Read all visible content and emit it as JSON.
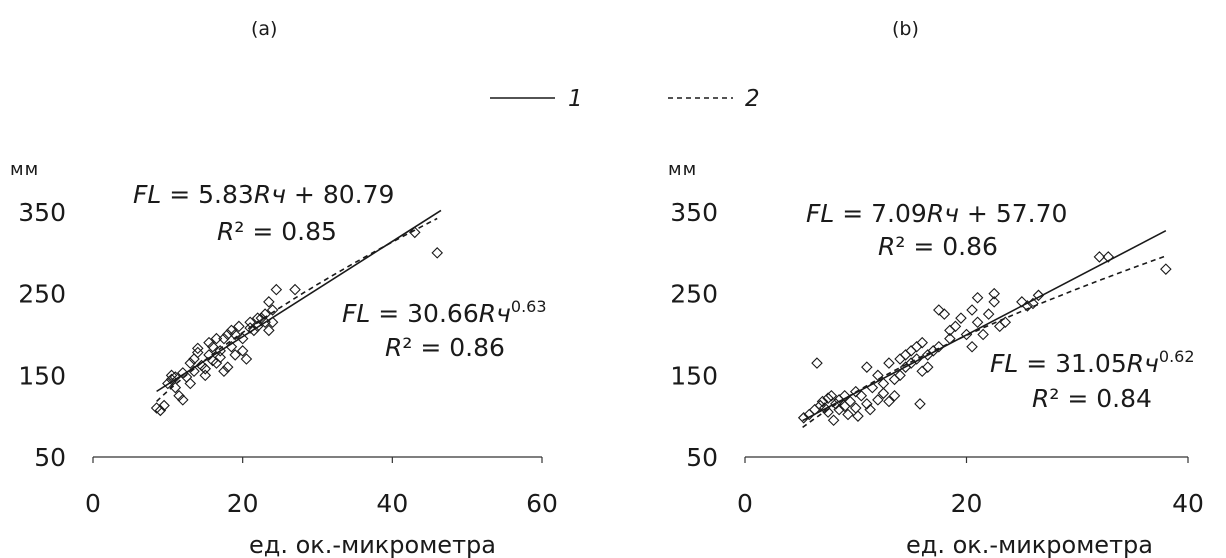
{
  "legend": [
    {
      "number": "1",
      "style": "solid"
    },
    {
      "number": "2",
      "style": "dashed"
    }
  ],
  "chart_data": [
    {
      "type": "scatter",
      "panel_label": "(a)",
      "yunit": "мм",
      "xlabel": "ед. ок.-микрометра",
      "xlim": [
        0,
        60
      ],
      "ylim": [
        50,
        350
      ],
      "xticks": [
        0,
        20,
        40,
        60
      ],
      "yticks": [
        50,
        150,
        250,
        350
      ],
      "equations": {
        "linear": {
          "fn": "FL",
          "eq": " = 5.83",
          "var": "Rч",
          "tail": " + 80.79",
          "r2": " = 0.85"
        },
        "power": {
          "fn": "FL",
          "eq": " = 30.66",
          "var": "Rч",
          "exp": "0.63",
          "r2": " = 0.86"
        }
      },
      "fits": {
        "linear": {
          "slope": 5.83,
          "intercept": 80.79,
          "xrange": [
            8.5,
            46.5
          ]
        },
        "power": {
          "a": 30.66,
          "b": 0.63,
          "xrange": [
            8.5,
            46
          ]
        }
      },
      "points": [
        [
          8.5,
          110
        ],
        [
          9,
          107
        ],
        [
          9.5,
          113
        ],
        [
          10,
          140
        ],
        [
          10.5,
          150
        ],
        [
          10.5,
          145
        ],
        [
          11,
          135
        ],
        [
          11,
          148
        ],
        [
          11.5,
          125
        ],
        [
          12,
          120
        ],
        [
          12,
          153
        ],
        [
          12.5,
          148
        ],
        [
          13,
          140
        ],
        [
          13,
          165
        ],
        [
          13.5,
          170
        ],
        [
          13.5,
          155
        ],
        [
          14,
          178
        ],
        [
          14,
          183
        ],
        [
          14.5,
          162
        ],
        [
          15,
          150
        ],
        [
          15,
          158
        ],
        [
          15.5,
          175
        ],
        [
          15.5,
          190
        ],
        [
          16,
          185
        ],
        [
          16,
          168
        ],
        [
          16.5,
          195
        ],
        [
          16.5,
          165
        ],
        [
          17,
          180
        ],
        [
          17,
          172
        ],
        [
          17.5,
          195
        ],
        [
          17.5,
          155
        ],
        [
          18,
          160
        ],
        [
          18,
          200
        ],
        [
          18.5,
          205
        ],
        [
          18.5,
          185
        ],
        [
          19,
          200
        ],
        [
          19,
          175
        ],
        [
          19.5,
          210
        ],
        [
          20,
          180
        ],
        [
          20,
          195
        ],
        [
          20.5,
          170
        ],
        [
          21,
          208
        ],
        [
          21,
          215
        ],
        [
          21.5,
          205
        ],
        [
          22,
          210
        ],
        [
          22,
          220
        ],
        [
          22.5,
          220
        ],
        [
          23,
          225
        ],
        [
          23,
          215
        ],
        [
          23.5,
          240
        ],
        [
          23.5,
          205
        ],
        [
          24,
          230
        ],
        [
          24,
          215
        ],
        [
          24.5,
          255
        ],
        [
          27,
          255
        ],
        [
          43,
          325
        ],
        [
          46,
          300
        ]
      ]
    },
    {
      "type": "scatter",
      "panel_label": "(b)",
      "yunit": "мм",
      "xlabel": "ед. ок.-микрометра",
      "xlim": [
        0,
        40
      ],
      "ylim": [
        50,
        350
      ],
      "xticks": [
        0,
        20,
        40
      ],
      "yticks": [
        50,
        150,
        250,
        350
      ],
      "equations": {
        "linear": {
          "fn": "FL",
          "eq": " = 7.09",
          "var": "Rч",
          "tail": " + 57.70",
          "r2": " = 0.86"
        },
        "power": {
          "fn": "FL",
          "eq": " = 31.05",
          "var": "Rч",
          "exp": "0.62",
          "r2": " = 0.84"
        }
      },
      "fits": {
        "linear": {
          "slope": 7.09,
          "intercept": 57.7,
          "xrange": [
            5.2,
            38
          ]
        },
        "power": {
          "a": 31.05,
          "b": 0.62,
          "xrange": [
            5.2,
            38
          ]
        }
      },
      "points": [
        [
          5.3,
          98
        ],
        [
          5.8,
          102
        ],
        [
          6.3,
          108
        ],
        [
          6.5,
          165
        ],
        [
          6.8,
          113
        ],
        [
          7,
          118
        ],
        [
          7.2,
          110
        ],
        [
          7.5,
          122
        ],
        [
          7.5,
          105
        ],
        [
          7.8,
          125
        ],
        [
          8,
          95
        ],
        [
          8.2,
          115
        ],
        [
          8.5,
          120
        ],
        [
          8.5,
          108
        ],
        [
          9,
          112
        ],
        [
          9,
          125
        ],
        [
          9.3,
          102
        ],
        [
          9.5,
          118
        ],
        [
          10,
          110
        ],
        [
          10,
          130
        ],
        [
          10.2,
          100
        ],
        [
          10.5,
          125
        ],
        [
          11,
          115
        ],
        [
          11,
          160
        ],
        [
          11.3,
          108
        ],
        [
          11.5,
          135
        ],
        [
          12,
          120
        ],
        [
          12,
          150
        ],
        [
          12.5,
          128
        ],
        [
          12.5,
          140
        ],
        [
          13,
          118
        ],
        [
          13,
          165
        ],
        [
          13.5,
          145
        ],
        [
          13.5,
          125
        ],
        [
          14,
          150
        ],
        [
          14,
          170
        ],
        [
          14.5,
          175
        ],
        [
          14.5,
          160
        ],
        [
          15,
          165
        ],
        [
          15,
          180
        ],
        [
          15.5,
          185
        ],
        [
          15.5,
          170
        ],
        [
          15.8,
          115
        ],
        [
          16,
          155
        ],
        [
          16,
          190
        ],
        [
          16.5,
          175
        ],
        [
          16.5,
          160
        ],
        [
          17,
          180
        ],
        [
          17.5,
          185
        ],
        [
          17.5,
          230
        ],
        [
          18,
          225
        ],
        [
          18.5,
          205
        ],
        [
          18.5,
          195
        ],
        [
          19,
          210
        ],
        [
          19.5,
          220
        ],
        [
          20,
          200
        ],
        [
          20.5,
          185
        ],
        [
          20.5,
          230
        ],
        [
          21,
          245
        ],
        [
          21,
          215
        ],
        [
          21.5,
          200
        ],
        [
          22,
          225
        ],
        [
          22.5,
          250
        ],
        [
          22.5,
          240
        ],
        [
          23,
          210
        ],
        [
          23.5,
          215
        ],
        [
          25,
          240
        ],
        [
          25.5,
          235
        ],
        [
          26,
          238
        ],
        [
          26.5,
          248
        ],
        [
          32,
          295
        ],
        [
          32.8,
          295
        ],
        [
          38,
          280
        ]
      ]
    }
  ]
}
